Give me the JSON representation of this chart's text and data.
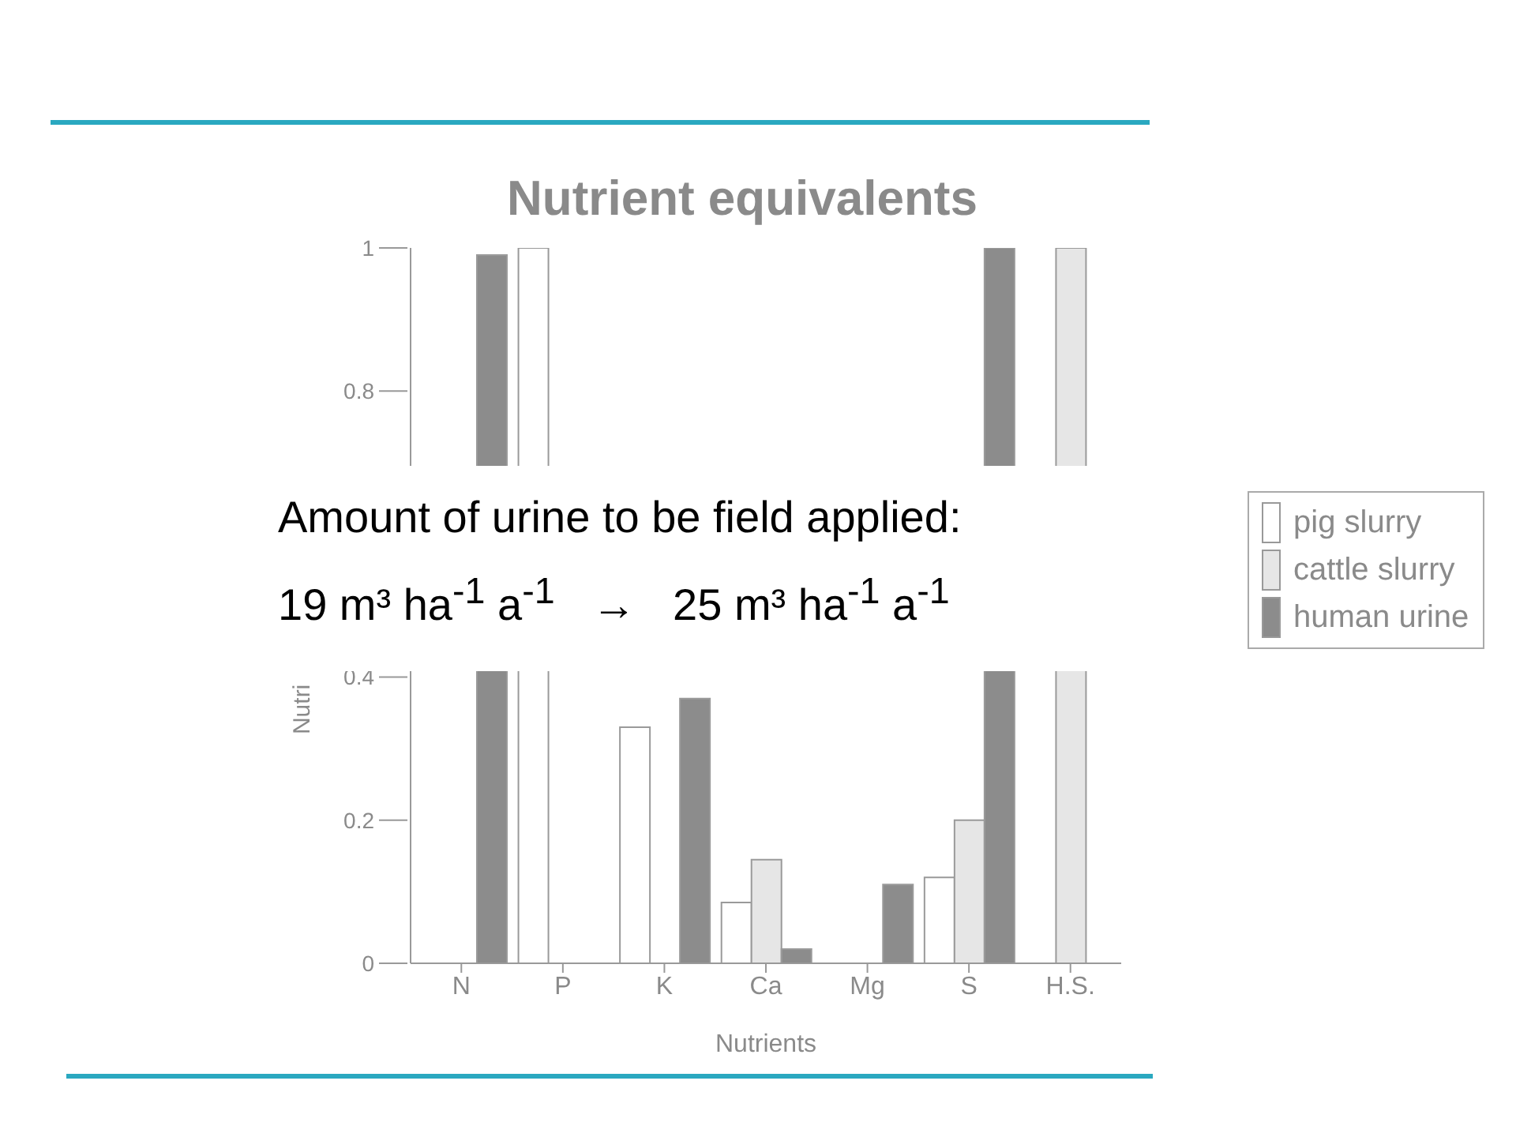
{
  "chart_data": {
    "type": "bar",
    "title": "Nutrient equivalents",
    "xlabel": "Nutrients",
    "ylabel": "Nutri",
    "categories": [
      "N",
      "P",
      "K",
      "Ca",
      "Mg",
      "S",
      "H.S."
    ],
    "series": [
      {
        "name": "pig slurry",
        "color": "#ffffff",
        "values": [
          null,
          1.0,
          0.33,
          0.085,
          null,
          0.12,
          null
        ]
      },
      {
        "name": "cattle slurry",
        "color": "#e6e6e6",
        "values": [
          null,
          null,
          null,
          0.145,
          null,
          0.2,
          1.0
        ]
      },
      {
        "name": "human urine",
        "color": "#8c8c8c",
        "values": [
          0.99,
          null,
          0.37,
          0.02,
          0.11,
          1.0,
          null
        ]
      }
    ],
    "ylim": [
      0,
      1
    ],
    "yticks": [
      0,
      0.2,
      0.4,
      0.8,
      1
    ],
    "annotations": [
      "Amount of urine to be field applied:",
      "19 m³ ha$^{-1}$ a$^{-1}$   →   25 m³ ha$^{-1}$ a$^{-1}$"
    ],
    "legend": "right",
    "grid": false
  }
}
